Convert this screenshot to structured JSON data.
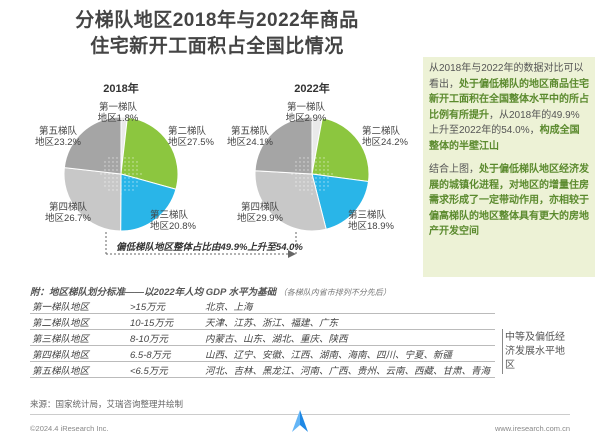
{
  "title": {
    "line1": "分梯队地区2018年与2022年商品",
    "line2": "住宅新开工面积占全国比情况"
  },
  "colors": {
    "tier1": "#eaeaea",
    "tier2": "#8cc63f",
    "tier3": "#29b5e8",
    "tier4": "#c8c8c8",
    "tier5": "#a5a5a5",
    "highlight": "#5b8a2e",
    "panel_bg": "#edf2d6"
  },
  "chart_data": [
    {
      "type": "pie",
      "title": "2018年",
      "categories": [
        "第一梯队地区",
        "第二梯队地区",
        "第三梯队地区",
        "第四梯队地区",
        "第五梯队地区"
      ],
      "values": [
        1.8,
        27.5,
        20.8,
        26.7,
        23.2
      ],
      "unit": "%"
    },
    {
      "type": "pie",
      "title": "2022年",
      "categories": [
        "第一梯队地区",
        "第二梯队地区",
        "第三梯队地区",
        "第四梯队地区",
        "第五梯队地区"
      ],
      "values": [
        2.9,
        24.2,
        18.9,
        29.9,
        24.1
      ],
      "unit": "%"
    }
  ],
  "pie_labels": {
    "p2018": [
      "第一梯队|地区1.8%",
      "第二梯队|地区27.5%",
      "第三梯队|地区20.8%",
      "第四梯队|地区26.7%",
      "第五梯队|地区23.2%"
    ],
    "p2022": [
      "第一梯队|地区2.9%",
      "第二梯队|地区24.2%",
      "第三梯队|地区18.9%",
      "第四梯队|地区29.9%",
      "第五梯队|地区24.1%"
    ]
  },
  "annotation": "偏低梯队地区整体占比由49.9%上升至54.0%",
  "side_panel": {
    "p1_a": "从2018年与2022年的数据对比可以看出，",
    "p1_b": "处于偏低梯队的地区商品住宅新开工面积在全国整体水平中的所占比例有所提升",
    "p1_c": "，从2018年的49.9%上升至2022年的54.0%，",
    "p1_d": "构成全国整体的半壁江山",
    "p2_a": "结合上图，",
    "p2_b": "处于偏低梯队地区经济发展的城镇化进程，对地区的增量住房需求形成了一定带动作用，亦相较于偏高梯队的地区整体具有更大的房地产开发空间"
  },
  "table": {
    "note": "附：地区梯队划分标准——以2022年人均 GDP 水平为基础",
    "note_small": "（各梯队内省市排列不分先后）",
    "rows": [
      {
        "tier": "第一梯队地区",
        "range": ">15万元",
        "regions": "北京、上海"
      },
      {
        "tier": "第二梯队地区",
        "range": "10-15万元",
        "regions": "天津、江苏、浙江、福建、广东"
      },
      {
        "tier": "第三梯队地区",
        "range": "8-10万元",
        "regions": "内蒙古、山东、湖北、重庆、陕西"
      },
      {
        "tier": "第四梯队地区",
        "range": "6.5-8万元",
        "regions": "山西、辽宁、安徽、江西、湖南、海南、四川、宁夏、新疆"
      },
      {
        "tier": "第五梯队地区",
        "range": "<6.5万元",
        "regions": "河北、吉林、黑龙江、河南、广西、贵州、云南、西藏、甘肃、青海"
      }
    ],
    "group_label": "中等及偏低经济发展水平地区"
  },
  "source": "来源：国家统计局，艾瑞咨询整理并绘制",
  "copyright": "©2024.4 iResearch Inc.",
  "website": "www.iresearch.com.cn"
}
